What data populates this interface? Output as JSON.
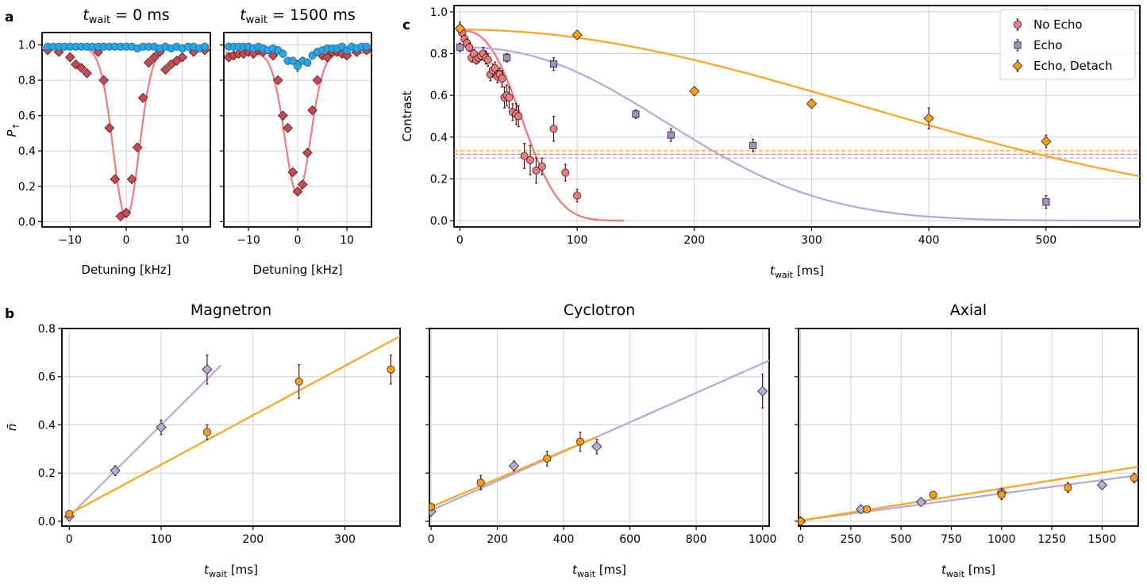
{
  "colors": {
    "no_echo": "#f47a7a",
    "no_echo_dark": "#d9434c",
    "echo": "#a48fc8",
    "echo_line": "#b9a9d9",
    "detach": "#ff9f10",
    "detach_line": "#f7a824",
    "blue": "#29a6e3",
    "err": "#5a1010"
  },
  "panel_letters": {
    "a": "a",
    "b": "b",
    "c": "c"
  },
  "chart_data": [
    {
      "id": "a1",
      "type": "scatter",
      "title_main": "t",
      "title_sub": "wait",
      "title_value": " = 0 ms",
      "xlabel": "Detuning [kHz]",
      "ylabel_main": "P",
      "ylabel_sub": "↑",
      "xlim": [
        -15,
        15
      ],
      "ylim": [
        -0.03,
        1.07
      ],
      "xticks": [
        -10,
        0,
        10
      ],
      "xtick_labels": [
        "−10",
        "0",
        "10"
      ],
      "yticks": [
        0.0,
        0.2,
        0.4,
        0.6,
        0.8,
        1.0
      ],
      "ytick_labels": [
        "0.0",
        "0.2",
        "0.4",
        "0.6",
        "0.8",
        "1.0"
      ],
      "show_yticklabels": true,
      "blue": {
        "x": [
          -14,
          -13,
          -12,
          -11,
          -10,
          -9,
          -8,
          -7,
          -6,
          -5,
          -4,
          -3,
          -2,
          -1,
          0,
          1,
          2,
          3,
          4,
          5,
          6,
          7,
          8,
          9,
          10,
          11,
          12,
          13,
          14
        ],
        "y": [
          0.99,
          0.99,
          0.99,
          0.99,
          0.99,
          0.99,
          0.99,
          0.99,
          0.99,
          0.99,
          0.99,
          0.99,
          0.99,
          0.99,
          0.99,
          0.99,
          0.98,
          0.99,
          0.99,
          0.99,
          0.98,
          0.99,
          0.98,
          0.99,
          0.98,
          0.99,
          0.99,
          0.98,
          0.99
        ]
      },
      "red": {
        "x": [
          -14,
          -12,
          -10,
          -9,
          -8,
          -7,
          -5,
          -4,
          -3,
          -2,
          -1,
          0,
          1,
          2,
          3,
          4,
          5,
          6,
          7,
          8,
          9,
          10,
          12,
          14
        ],
        "y": [
          0.97,
          0.96,
          0.93,
          0.89,
          0.87,
          0.84,
          0.96,
          0.8,
          0.53,
          0.24,
          0.03,
          0.05,
          0.24,
          0.42,
          0.7,
          0.9,
          0.93,
          0.96,
          0.86,
          0.89,
          0.91,
          0.93,
          0.96,
          0.97
        ],
        "err": [
          0.02,
          0.02,
          0.02,
          0.02,
          0.02,
          0.02,
          0.02,
          0.02,
          0.02,
          0.02,
          0.01,
          0.01,
          0.02,
          0.02,
          0.02,
          0.02,
          0.02,
          0.02,
          0.02,
          0.02,
          0.02,
          0.02,
          0.02,
          0.02
        ]
      },
      "fit": {
        "base": 0.985,
        "depth": 0.96,
        "center": 0,
        "sigma": 2.3
      }
    },
    {
      "id": "a2",
      "type": "scatter",
      "title_main": "t",
      "title_sub": "wait",
      "title_value": " = 1500 ms",
      "xlabel": "Detuning [kHz]",
      "xlim": [
        -15,
        15
      ],
      "ylim": [
        -0.03,
        1.07
      ],
      "xticks": [
        -10,
        0,
        10
      ],
      "xtick_labels": [
        "−10",
        "0",
        "10"
      ],
      "yticks": [
        0.0,
        0.2,
        0.4,
        0.6,
        0.8,
        1.0
      ],
      "show_yticklabels": false,
      "blue": {
        "x": [
          -14,
          -13,
          -12,
          -11,
          -10,
          -9,
          -8,
          -7,
          -6,
          -5,
          -4,
          -3,
          -2,
          -1,
          0,
          1,
          2,
          3,
          4,
          5,
          6,
          7,
          8,
          9,
          10,
          11,
          12,
          13,
          14
        ],
        "y": [
          0.99,
          0.99,
          0.99,
          0.99,
          0.99,
          0.98,
          0.99,
          0.98,
          0.97,
          0.98,
          0.97,
          0.95,
          0.91,
          0.91,
          0.88,
          0.91,
          0.9,
          0.94,
          0.96,
          0.97,
          0.98,
          0.98,
          0.98,
          0.99,
          0.97,
          0.99,
          0.98,
          0.99,
          0.99
        ],
        "err": [
          0.01,
          0.01,
          0.01,
          0.01,
          0.01,
          0.01,
          0.01,
          0.01,
          0.01,
          0.01,
          0.02,
          0.02,
          0.02,
          0.02,
          0.03,
          0.02,
          0.02,
          0.02,
          0.02,
          0.01,
          0.01,
          0.01,
          0.01,
          0.01,
          0.01,
          0.01,
          0.01,
          0.01,
          0.01
        ]
      },
      "red": {
        "x": [
          -14,
          -13,
          -12,
          -11,
          -10,
          -9,
          -8,
          -7,
          -5,
          -4,
          -3,
          -2,
          -1,
          0,
          1,
          2,
          3,
          4,
          5,
          6,
          7,
          8,
          9,
          10,
          12,
          14
        ],
        "y": [
          0.93,
          0.94,
          0.95,
          0.95,
          0.96,
          0.95,
          0.97,
          0.96,
          0.94,
          0.8,
          0.6,
          0.53,
          0.28,
          0.17,
          0.21,
          0.39,
          0.63,
          0.8,
          0.94,
          0.93,
          0.96,
          0.96,
          0.95,
          0.94,
          0.96,
          0.97
        ],
        "err": [
          0.02,
          0.02,
          0.02,
          0.02,
          0.02,
          0.02,
          0.02,
          0.02,
          0.02,
          0.02,
          0.02,
          0.02,
          0.02,
          0.02,
          0.02,
          0.02,
          0.02,
          0.02,
          0.02,
          0.02,
          0.02,
          0.02,
          0.02,
          0.02,
          0.02,
          0.02
        ]
      },
      "fit": {
        "base": 0.955,
        "depth": 0.8,
        "center": 0,
        "sigma": 2.6
      }
    },
    {
      "id": "c",
      "type": "scatter",
      "ylabel": "Contrast",
      "xlabel_main": "t",
      "xlabel_sub": "wait",
      "xlabel_unit": " [ms]",
      "xlim": [
        -5,
        580
      ],
      "ylim": [
        -0.03,
        1.03
      ],
      "xticks": [
        0,
        100,
        200,
        300,
        400,
        500
      ],
      "xtick_labels": [
        "0",
        "100",
        "200",
        "300",
        "400",
        "500"
      ],
      "yticks": [
        0.0,
        0.2,
        0.4,
        0.6,
        0.8,
        1.0
      ],
      "ytick_labels": [
        "0.0",
        "0.2",
        "0.4",
        "0.6",
        "0.8",
        "1.0"
      ],
      "legend": [
        "No Echo",
        "Echo",
        "Echo, Detach"
      ],
      "legend_position": "top-right",
      "series": [
        {
          "name": "No Echo",
          "marker": "circle",
          "x": [
            0,
            2,
            4,
            6,
            8,
            10,
            12,
            14,
            16,
            18,
            20,
            22,
            24,
            26,
            28,
            30,
            32,
            34,
            36,
            38,
            40,
            42,
            45,
            48,
            50,
            55,
            60,
            65,
            70,
            80,
            90,
            100
          ],
          "y": [
            0.92,
            0.9,
            0.87,
            0.85,
            0.83,
            0.78,
            0.8,
            0.77,
            0.78,
            0.79,
            0.8,
            0.78,
            0.77,
            0.7,
            0.72,
            0.73,
            0.69,
            0.7,
            0.68,
            0.59,
            0.6,
            0.59,
            0.52,
            0.51,
            0.5,
            0.31,
            0.29,
            0.24,
            0.26,
            0.44,
            0.23,
            0.12
          ],
          "err": [
            0.03,
            0.02,
            0.02,
            0.02,
            0.02,
            0.02,
            0.02,
            0.02,
            0.02,
            0.02,
            0.03,
            0.03,
            0.03,
            0.03,
            0.03,
            0.03,
            0.03,
            0.03,
            0.04,
            0.05,
            0.05,
            0.05,
            0.04,
            0.05,
            0.05,
            0.06,
            0.07,
            0.06,
            0.04,
            0.06,
            0.04,
            0.03
          ]
        },
        {
          "name": "Echo",
          "marker": "square",
          "x": [
            0,
            40,
            80,
            150,
            180,
            250,
            500
          ],
          "y": [
            0.83,
            0.78,
            0.75,
            0.51,
            0.41,
            0.36,
            0.09
          ],
          "err": [
            0.02,
            0.02,
            0.03,
            0.02,
            0.03,
            0.03,
            0.03
          ]
        },
        {
          "name": "Echo, Detach",
          "marker": "diamond",
          "x": [
            0,
            100,
            200,
            300,
            400,
            500
          ],
          "y": [
            0.92,
            0.89,
            0.62,
            0.56,
            0.49,
            0.38
          ],
          "err": [
            0.02,
            0.02,
            0.02,
            0.02,
            0.05,
            0.03
          ]
        }
      ],
      "fits": [
        {
          "name": "No Echo",
          "a": 0.91,
          "tau": 63,
          "n": 2.7,
          "xmax": 140
        },
        {
          "name": "Echo",
          "a": 0.83,
          "tau": 225,
          "n": 2.3,
          "xmax": 580
        },
        {
          "name": "Echo, Detach",
          "a": 0.915,
          "tau": 480,
          "n": 2.0,
          "xmax": 580
        }
      ],
      "hlines": [
        {
          "name": "Echo, Detach",
          "y": 0.335
        },
        {
          "name": "No Echo",
          "y": 0.318
        },
        {
          "name": "Echo",
          "y": 0.3
        }
      ]
    },
    {
      "id": "b1",
      "type": "scatter",
      "title": "Magnetron",
      "ylabel": "n̄",
      "xlabel_main": "t",
      "xlabel_sub": "wait",
      "xlabel_unit": " [ms]",
      "xlim": [
        -8,
        360
      ],
      "ylim": [
        -0.02,
        0.8
      ],
      "xticks": [
        0,
        100,
        200,
        300
      ],
      "xtick_labels": [
        "0",
        "100",
        "200",
        "300"
      ],
      "yticks": [
        0.0,
        0.2,
        0.4,
        0.6,
        0.8
      ],
      "ytick_labels": [
        "0.0",
        "0.2",
        "0.4",
        "0.6",
        "0.8"
      ],
      "show_yticklabels": true,
      "series": [
        {
          "name": "purple",
          "marker": "diamond",
          "x": [
            0,
            50,
            100,
            150
          ],
          "y": [
            0.02,
            0.21,
            0.39,
            0.63
          ],
          "err": [
            0.01,
            0.02,
            0.03,
            0.06
          ]
        },
        {
          "name": "orange",
          "marker": "circle",
          "x": [
            0,
            150,
            250,
            350
          ],
          "y": [
            0.03,
            0.37,
            0.58,
            0.63
          ],
          "err": [
            0.01,
            0.03,
            0.07,
            0.06
          ]
        }
      ],
      "fits": [
        {
          "name": "purple",
          "x0": 0,
          "x1": 165,
          "slope": 0.0038,
          "intercept": 0.02
        },
        {
          "name": "orange",
          "x0": 0,
          "x1": 360,
          "slope": 0.00205,
          "intercept": 0.03
        }
      ]
    },
    {
      "id": "b2",
      "type": "scatter",
      "title": "Cyclotron",
      "xlabel_main": "t",
      "xlabel_sub": "wait",
      "xlabel_unit": " [ms]",
      "xlim": [
        -5,
        1020
      ],
      "ylim": [
        -0.02,
        0.8
      ],
      "xticks": [
        0,
        200,
        400,
        600,
        800,
        1000
      ],
      "xtick_labels": [
        "0",
        "200",
        "400",
        "600",
        "800",
        "1000"
      ],
      "yticks": [
        0.0,
        0.2,
        0.4,
        0.6,
        0.8
      ],
      "show_yticklabels": false,
      "series": [
        {
          "name": "purple",
          "marker": "diamond",
          "x": [
            0,
            250,
            500,
            1000
          ],
          "y": [
            0.04,
            0.23,
            0.31,
            0.54
          ],
          "err": [
            0.01,
            0.02,
            0.03,
            0.07
          ]
        },
        {
          "name": "orange",
          "marker": "circle",
          "x": [
            0,
            150,
            350,
            450
          ],
          "y": [
            0.06,
            0.16,
            0.26,
            0.33
          ],
          "err": [
            0.01,
            0.03,
            0.03,
            0.04
          ]
        }
      ],
      "fits": [
        {
          "name": "purple",
          "x0": 0,
          "x1": 1020,
          "slope": 0.00061,
          "intercept": 0.045
        },
        {
          "name": "orange",
          "x0": 0,
          "x1": 500,
          "slope": 0.00058,
          "intercept": 0.06
        }
      ]
    },
    {
      "id": "b3",
      "type": "scatter",
      "title": "Axial",
      "xlabel_main": "t",
      "xlabel_sub": "wait",
      "xlabel_unit": " [ms]",
      "xlim": [
        -10,
        1680
      ],
      "ylim": [
        -0.02,
        0.8
      ],
      "xticks": [
        0,
        250,
        500,
        750,
        1000,
        1250,
        1500
      ],
      "xtick_labels": [
        "0",
        "250",
        "500",
        "750",
        "1000",
        "1250",
        "1500"
      ],
      "yticks": [
        0.0,
        0.2,
        0.4,
        0.6,
        0.8
      ],
      "show_yticklabels": false,
      "series": [
        {
          "name": "purple",
          "marker": "diamond",
          "x": [
            0,
            300,
            600,
            1000,
            1500
          ],
          "y": [
            0.0,
            0.05,
            0.08,
            0.12,
            0.15
          ],
          "err": [
            0.005,
            0.01,
            0.01,
            0.01,
            0.01
          ]
        },
        {
          "name": "orange",
          "marker": "circle",
          "x": [
            0,
            330,
            660,
            1000,
            1330,
            1660
          ],
          "y": [
            0.0,
            0.05,
            0.11,
            0.11,
            0.14,
            0.18
          ],
          "err": [
            0.005,
            0.01,
            0.01,
            0.02,
            0.02,
            0.02
          ]
        }
      ],
      "fits": [
        {
          "name": "purple",
          "x0": 0,
          "x1": 1680,
          "slope": 0.000112,
          "intercept": 0.003
        },
        {
          "name": "orange",
          "x0": 0,
          "x1": 1680,
          "slope": 0.000133,
          "intercept": 0.003
        }
      ]
    }
  ]
}
